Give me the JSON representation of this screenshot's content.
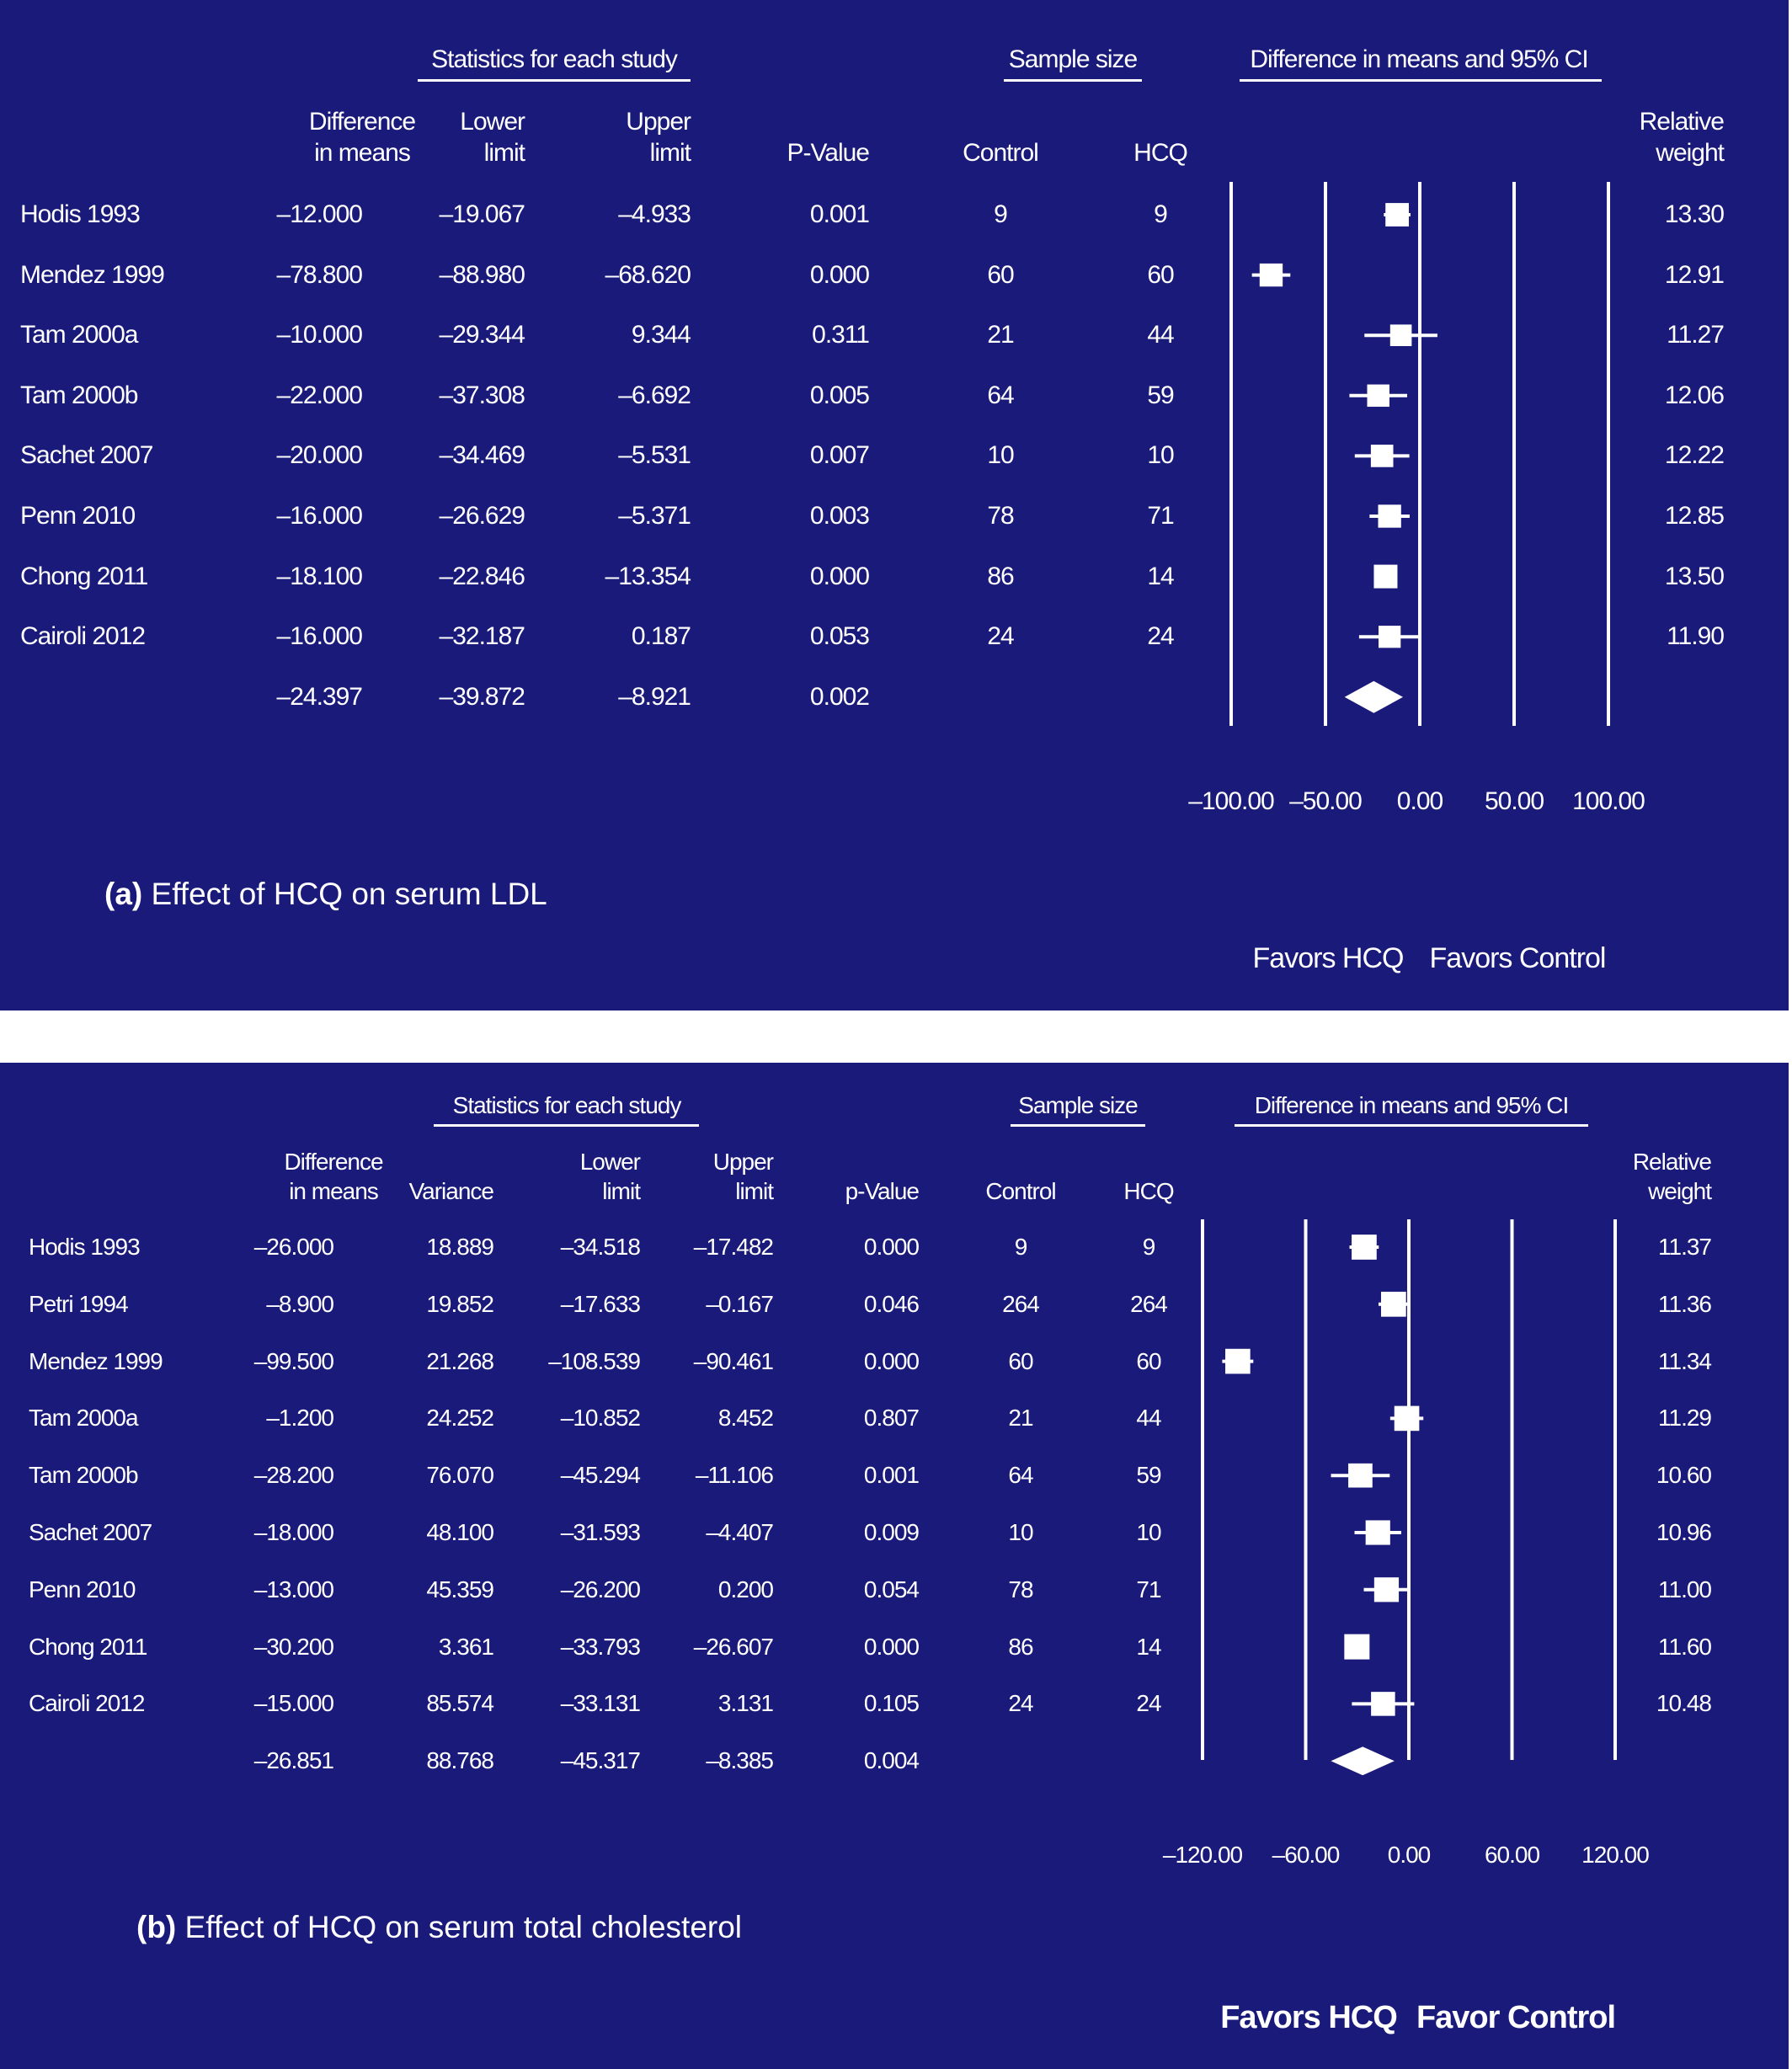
{
  "chart_data": [
    {
      "type": "forest",
      "caption_label": "(a)",
      "caption_text": "Effect of HCQ on serum LDL",
      "group_headers": [
        "Statistics for each study",
        "Sample size",
        "Difference in means and 95% CI"
      ],
      "columns": {
        "diff": [
          "Difference",
          "in means"
        ],
        "lower": [
          "Lower",
          "limit"
        ],
        "upper": [
          "Upper",
          "limit"
        ],
        "p": [
          "P-Value"
        ],
        "control": [
          "Control"
        ],
        "hcq": [
          "HCQ"
        ],
        "weight": [
          "Relative",
          "weight"
        ]
      },
      "rows": [
        {
          "study": "Hodis 1993",
          "diff": "–12.000",
          "lower": "–19.067",
          "upper": "–4.933",
          "p": "0.001",
          "control": "9",
          "hcq": "9",
          "weight": "13.30"
        },
        {
          "study": "Mendez 1999",
          "diff": "–78.800",
          "lower": "–88.980",
          "upper": "–68.620",
          "p": "0.000",
          "control": "60",
          "hcq": "60",
          "weight": "12.91"
        },
        {
          "study": "Tam 2000a",
          "diff": "–10.000",
          "lower": "–29.344",
          "upper": "9.344",
          "p": "0.311",
          "control": "21",
          "hcq": "44",
          "weight": "11.27"
        },
        {
          "study": "Tam 2000b",
          "diff": "–22.000",
          "lower": "–37.308",
          "upper": "–6.692",
          "p": "0.005",
          "control": "64",
          "hcq": "59",
          "weight": "12.06"
        },
        {
          "study": "Sachet 2007",
          "diff": "–20.000",
          "lower": "–34.469",
          "upper": "–5.531",
          "p": "0.007",
          "control": "10",
          "hcq": "10",
          "weight": "12.22"
        },
        {
          "study": "Penn 2010",
          "diff": "–16.000",
          "lower": "–26.629",
          "upper": "–5.371",
          "p": "0.003",
          "control": "78",
          "hcq": "71",
          "weight": "12.85"
        },
        {
          "study": "Chong 2011",
          "diff": "–18.100",
          "lower": "–22.846",
          "upper": "–13.354",
          "p": "0.000",
          "control": "86",
          "hcq": "14",
          "weight": "13.50"
        },
        {
          "study": "Cairoli 2012",
          "diff": "–16.000",
          "lower": "–32.187",
          "upper": "0.187",
          "p": "0.053",
          "control": "24",
          "hcq": "24",
          "weight": "11.90"
        }
      ],
      "summary": {
        "diff": "–24.397",
        "lower": "–39.872",
        "upper": "–8.921",
        "p": "0.002"
      },
      "x_ticks": [
        "–100.00",
        "–50.00",
        "0.00",
        "50.00",
        "100.00"
      ],
      "x_tick_values": [
        -100,
        -50,
        0,
        50,
        100
      ],
      "xlim": [
        -100,
        100
      ],
      "favors_left": "Favors HCQ",
      "favors_right": "Favors Control"
    },
    {
      "type": "forest",
      "caption_label": "(b)",
      "caption_text": "Effect of HCQ on serum total cholesterol",
      "group_headers": [
        "Statistics for each study",
        "Sample size",
        "Difference in means and 95% CI"
      ],
      "columns": {
        "diff": [
          "Difference",
          "in means"
        ],
        "variance": [
          "Variance"
        ],
        "lower": [
          "Lower",
          "limit"
        ],
        "upper": [
          "Upper",
          "limit"
        ],
        "p": [
          "p-Value"
        ],
        "control": [
          "Control"
        ],
        "hcq": [
          "HCQ"
        ],
        "weight": [
          "Relative",
          "weight"
        ]
      },
      "rows": [
        {
          "study": "Hodis 1993",
          "diff": "–26.000",
          "variance": "18.889",
          "lower": "–34.518",
          "upper": "–17.482",
          "p": "0.000",
          "control": "9",
          "hcq": "9",
          "weight": "11.37"
        },
        {
          "study": "Petri 1994",
          "diff": "–8.900",
          "variance": "19.852",
          "lower": "–17.633",
          "upper": "–0.167",
          "p": "0.046",
          "control": "264",
          "hcq": "264",
          "weight": "11.36"
        },
        {
          "study": "Mendez 1999",
          "diff": "–99.500",
          "variance": "21.268",
          "lower": "–108.539",
          "upper": "–90.461",
          "p": "0.000",
          "control": "60",
          "hcq": "60",
          "weight": "11.34"
        },
        {
          "study": "Tam 2000a",
          "diff": "–1.200",
          "variance": "24.252",
          "lower": "–10.852",
          "upper": "8.452",
          "p": "0.807",
          "control": "21",
          "hcq": "44",
          "weight": "11.29"
        },
        {
          "study": "Tam 2000b",
          "diff": "–28.200",
          "variance": "76.070",
          "lower": "–45.294",
          "upper": "–11.106",
          "p": "0.001",
          "control": "64",
          "hcq": "59",
          "weight": "10.60"
        },
        {
          "study": "Sachet 2007",
          "diff": "–18.000",
          "variance": "48.100",
          "lower": "–31.593",
          "upper": "–4.407",
          "p": "0.009",
          "control": "10",
          "hcq": "10",
          "weight": "10.96"
        },
        {
          "study": "Penn 2010",
          "diff": "–13.000",
          "variance": "45.359",
          "lower": "–26.200",
          "upper": "0.200",
          "p": "0.054",
          "control": "78",
          "hcq": "71",
          "weight": "11.00"
        },
        {
          "study": "Chong 2011",
          "diff": "–30.200",
          "variance": "3.361",
          "lower": "–33.793",
          "upper": "–26.607",
          "p": "0.000",
          "control": "86",
          "hcq": "14",
          "weight": "11.60"
        },
        {
          "study": "Cairoli 2012",
          "diff": "–15.000",
          "variance": "85.574",
          "lower": "–33.131",
          "upper": "3.131",
          "p": "0.105",
          "control": "24",
          "hcq": "24",
          "weight": "10.48"
        }
      ],
      "summary": {
        "diff": "–26.851",
        "variance": "88.768",
        "lower": "–45.317",
        "upper": "–8.385",
        "p": "0.004"
      },
      "x_ticks": [
        "–120.00",
        "–60.00",
        "0.00",
        "60.00",
        "120.00"
      ],
      "x_tick_values": [
        -120,
        -60,
        0,
        60,
        120
      ],
      "xlim": [
        -120,
        120
      ],
      "favors_left": "Favors HCQ",
      "favors_right": "Favor Control"
    }
  ],
  "colors": {
    "background": "#1a1a7a",
    "foreground": "#ffffff",
    "page": "#ffffff"
  }
}
